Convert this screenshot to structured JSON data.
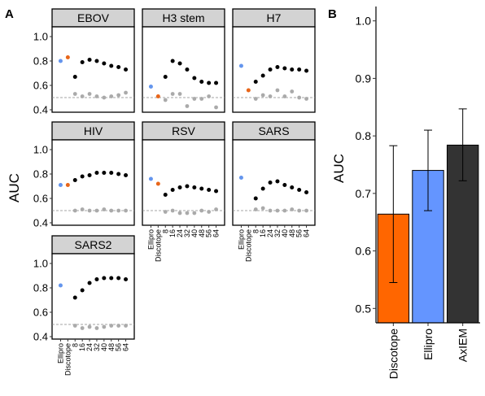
{
  "panel_labels": {
    "a": "A",
    "b": "B"
  },
  "colors": {
    "ellipro": "#6495ED",
    "discotope": "#E8661A",
    "axiem": "#000000",
    "baseline": "#AAAAAA",
    "strip": "#D3D3D3",
    "bar_discotope": "#FF6600",
    "bar_ellipro": "#6495FF",
    "bar_axiem": "#333333"
  },
  "chart_data": [
    {
      "type": "scatter",
      "panel": "A",
      "ylabel": "AUC",
      "ylim": [
        0.38,
        1.08
      ],
      "yticks": [
        "0.4",
        "0.6",
        "0.8",
        "1.0"
      ],
      "x_categories": [
        "Ellipro",
        "Discotope",
        "8",
        "16",
        "24",
        "32",
        "40",
        "48",
        "56",
        "64"
      ],
      "baseline_reference": 0.5,
      "facets": [
        {
          "title": "EBOV",
          "ellipro": 0.8,
          "discotope": 0.83,
          "axiem": [
            0.67,
            0.79,
            0.81,
            0.8,
            0.78,
            0.76,
            0.75,
            0.73
          ],
          "baseline": [
            0.53,
            0.51,
            0.53,
            0.51,
            0.5,
            0.51,
            0.52,
            0.54
          ]
        },
        {
          "title": "H3 stem",
          "ellipro": 0.59,
          "discotope": 0.51,
          "axiem": [
            0.67,
            0.8,
            0.78,
            0.73,
            0.66,
            0.63,
            0.62,
            0.62
          ],
          "baseline": [
            0.48,
            0.53,
            0.53,
            0.43,
            0.49,
            0.49,
            0.51,
            0.42
          ]
        },
        {
          "title": "H7",
          "ellipro": 0.76,
          "discotope": 0.56,
          "axiem": [
            0.63,
            0.68,
            0.73,
            0.75,
            0.74,
            0.73,
            0.73,
            0.72
          ],
          "baseline": [
            0.49,
            0.52,
            0.51,
            0.56,
            0.51,
            0.55,
            0.5,
            0.49
          ]
        },
        {
          "title": "HIV",
          "ellipro": 0.71,
          "discotope": 0.71,
          "axiem": [
            0.75,
            0.78,
            0.79,
            0.81,
            0.81,
            0.81,
            0.8,
            0.79
          ],
          "baseline": [
            0.5,
            0.51,
            0.5,
            0.5,
            0.51,
            0.5,
            0.5,
            0.5
          ]
        },
        {
          "title": "RSV",
          "ellipro": 0.76,
          "discotope": 0.72,
          "axiem": [
            0.63,
            0.67,
            0.69,
            0.7,
            0.69,
            0.68,
            0.67,
            0.66
          ],
          "baseline": [
            0.49,
            0.5,
            0.48,
            0.48,
            0.48,
            0.5,
            0.49,
            0.51
          ]
        },
        {
          "title": "SARS",
          "ellipro": 0.77,
          "discotope": null,
          "axiem": [
            0.6,
            0.68,
            0.73,
            0.74,
            0.71,
            0.69,
            0.67,
            0.65
          ],
          "baseline": [
            0.51,
            0.52,
            0.5,
            0.5,
            0.5,
            0.51,
            0.5,
            0.5
          ]
        },
        {
          "title": "SARS2",
          "ellipro": 0.82,
          "discotope": null,
          "axiem": [
            0.72,
            0.78,
            0.84,
            0.87,
            0.88,
            0.88,
            0.88,
            0.87
          ],
          "baseline": [
            0.49,
            0.47,
            0.48,
            0.47,
            0.48,
            0.49,
            0.49,
            0.49
          ]
        }
      ]
    },
    {
      "type": "bar",
      "panel": "B",
      "ylabel": "AUC",
      "ylim": [
        0.475,
        1.025
      ],
      "yticks": [
        "0.5",
        "0.6",
        "0.7",
        "0.8",
        "0.9",
        "1.0"
      ],
      "categories": [
        "Discotope",
        "Ellipro",
        "AxIEM"
      ],
      "values": [
        0.664,
        0.74,
        0.784
      ],
      "error_low": [
        0.545,
        0.67,
        0.722
      ],
      "error_high": [
        0.783,
        0.81,
        0.847
      ]
    }
  ]
}
